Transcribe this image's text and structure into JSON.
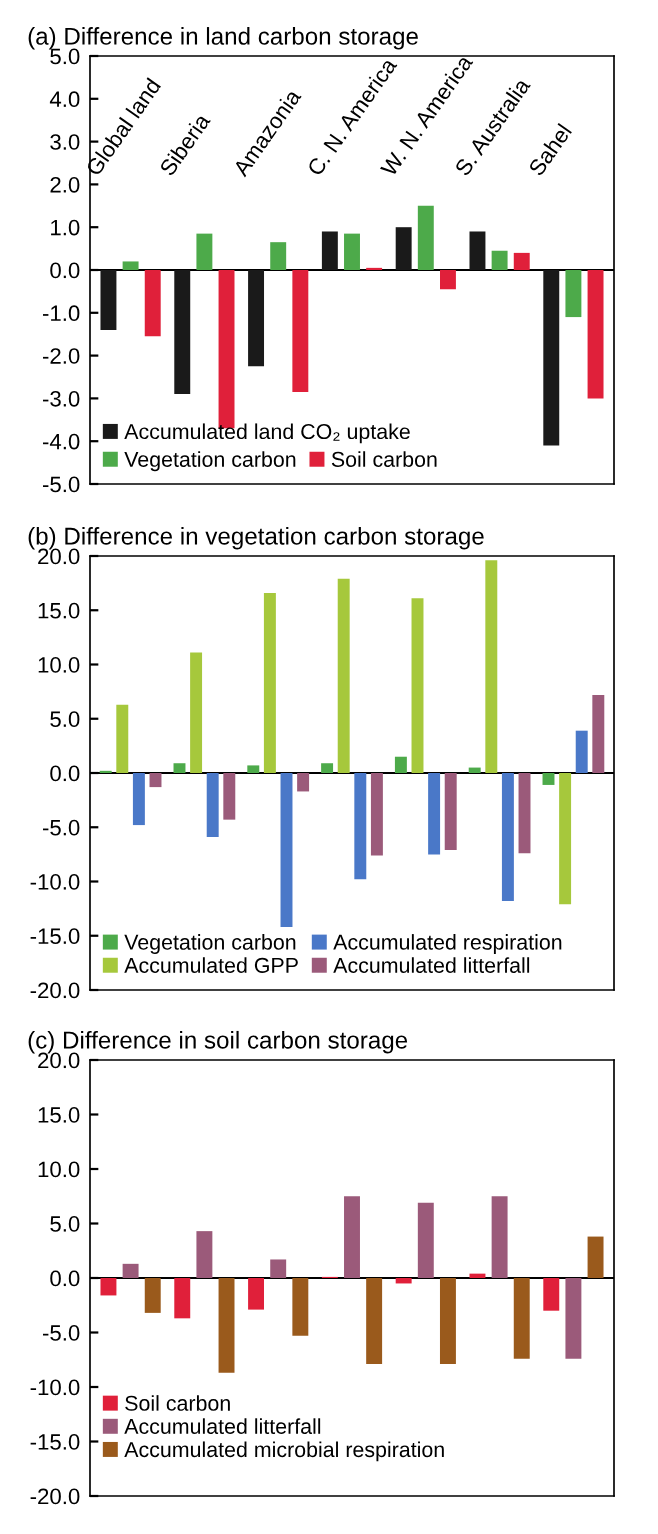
{
  "chart_data": [
    {
      "type": "bar",
      "title": "(a) Difference in land carbon storage",
      "categories": [
        "Global land",
        "Siberia",
        "Amazonia",
        "C. N. America",
        "W. N. America",
        "S. Australia",
        "Sahel"
      ],
      "ylim": [
        -5.0,
        5.0
      ],
      "yticks": [
        {
          "value": -5,
          "label": "-5.0"
        },
        {
          "value": -4,
          "label": "-4.0"
        },
        {
          "value": -3,
          "label": "-3.0"
        },
        {
          "value": -2,
          "label": "-2.0"
        },
        {
          "value": -1,
          "label": "-1.0"
        },
        {
          "value": 0,
          "label": "0.0"
        },
        {
          "value": 1,
          "label": "1.0"
        },
        {
          "value": 2,
          "label": "2.0"
        },
        {
          "value": 3,
          "label": "3.0"
        },
        {
          "value": 4,
          "label": "4.0"
        },
        {
          "value": 5,
          "label": "5.0"
        }
      ],
      "legend": "bottom left",
      "series": [
        {
          "name": "Accumulated land CO₂ uptake",
          "color": "#1a1a1a",
          "values": [
            -1.4,
            -2.9,
            -2.25,
            0.9,
            1.0,
            0.9,
            -4.1
          ]
        },
        {
          "name": "Vegetation carbon",
          "color": "#4daa4a",
          "values": [
            0.2,
            0.85,
            0.65,
            0.85,
            1.5,
            0.45,
            -1.1
          ]
        },
        {
          "name": "Soil carbon",
          "color": "#e0203a",
          "values": [
            -1.55,
            -3.7,
            -2.85,
            0.05,
            -0.45,
            0.4,
            -3.0
          ]
        }
      ]
    },
    {
      "type": "bar",
      "title": "(b) Difference in vegetation carbon storage",
      "categories": [
        null,
        null,
        null,
        null,
        null,
        null,
        null
      ],
      "tick_labels": "y",
      "ylim": [
        -20.0,
        20.0
      ],
      "yticks": [
        {
          "value": -20,
          "label": "-20.0"
        },
        {
          "value": -15,
          "label": "-15.0"
        },
        {
          "value": -10,
          "label": "-10.0"
        },
        {
          "value": -5,
          "label": "-5.0"
        },
        {
          "value": 0,
          "label": "0.0"
        },
        {
          "value": 5,
          "label": "5.0"
        },
        {
          "value": 10,
          "label": "10.0"
        },
        {
          "value": 15,
          "label": "15.0"
        },
        {
          "value": 20,
          "label": "20.0"
        }
      ],
      "legend": "bottom left",
      "series": [
        {
          "name": "Vegetation carbon",
          "color": "#4daa4a",
          "values": [
            0.2,
            0.9,
            0.7,
            0.9,
            1.5,
            0.5,
            -1.1
          ]
        },
        {
          "name": "Accumulated GPP",
          "color": "#a6c83c",
          "values": [
            6.3,
            11.1,
            16.6,
            17.9,
            16.1,
            19.6,
            -12.1
          ]
        },
        {
          "name": "Accumulated respiration",
          "color": "#4a78c8",
          "values": [
            -4.8,
            -5.9,
            -14.2,
            -9.8,
            -7.5,
            -11.8,
            3.9
          ]
        },
        {
          "name": "Accumulated litterfall",
          "color": "#9b5a7a",
          "values": [
            -1.3,
            -4.3,
            -1.7,
            -7.6,
            -7.1,
            -7.4,
            7.2
          ]
        }
      ]
    },
    {
      "type": "bar",
      "title": "(c) Difference in soil carbon storage",
      "categories": [
        null,
        null,
        null,
        null,
        null,
        null,
        null
      ],
      "tick_labels": "y",
      "ylim": [
        -20.0,
        20.0
      ],
      "yticks": [
        {
          "value": -20,
          "label": "-20.0"
        },
        {
          "value": -15,
          "label": "-15.0"
        },
        {
          "value": -10,
          "label": "-10.0"
        },
        {
          "value": -5,
          "label": "-5.0"
        },
        {
          "value": 0,
          "label": "0.0"
        },
        {
          "value": 5,
          "label": "5.0"
        },
        {
          "value": 10,
          "label": "10.0"
        },
        {
          "value": 15,
          "label": "15.0"
        },
        {
          "value": 20,
          "label": "20.0"
        }
      ],
      "legend": "bottom left",
      "series": [
        {
          "name": "Soil carbon",
          "color": "#e0203a",
          "values": [
            -1.6,
            -3.7,
            -2.9,
            0.1,
            -0.5,
            0.4,
            -3.0
          ]
        },
        {
          "name": "Accumulated litterfall",
          "color": "#9b5a7a",
          "values": [
            1.3,
            4.3,
            1.7,
            7.5,
            6.9,
            7.5,
            -7.4
          ]
        },
        {
          "name": "Accumulated microbial respiration",
          "color": "#9a5a1c",
          "values": [
            -3.2,
            -8.7,
            -5.3,
            -7.9,
            -7.9,
            -7.4,
            3.8
          ]
        }
      ]
    }
  ]
}
